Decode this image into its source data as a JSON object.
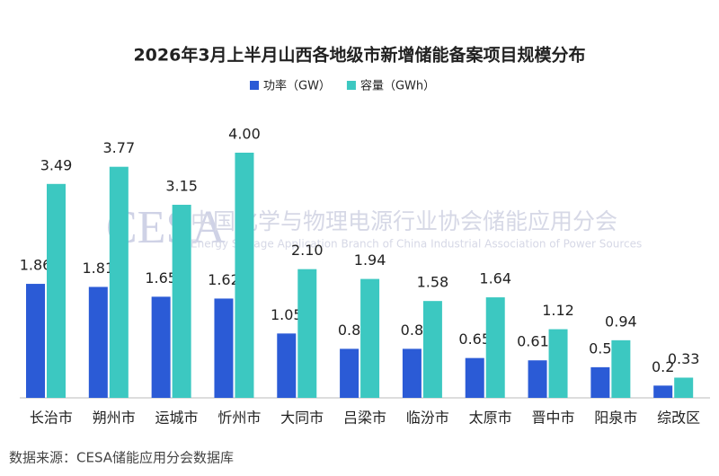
{
  "chart_data": {
    "type": "bar",
    "title": "2026年3月上半月山西各地级市新增储能备案项目规模分布",
    "categories": [
      "长治市",
      "朔州市",
      "运城市",
      "忻州市",
      "大同市",
      "吕梁市",
      "临汾市",
      "太原市",
      "晋中市",
      "阳泉市",
      "综改区"
    ],
    "series": [
      {
        "name": "功率（GW）",
        "color": "#2b5bd6",
        "values": [
          1.86,
          1.81,
          1.65,
          1.62,
          1.05,
          0.8,
          0.8,
          0.65,
          0.612,
          0.5,
          0.2
        ],
        "value_labels": [
          "1.86",
          "1.81",
          "1.65",
          "1.62",
          "1.05",
          "0.8",
          "0.8",
          "0.65",
          "0.612",
          "0.5",
          "0.2"
        ]
      },
      {
        "name": "容量（GWh）",
        "color": "#3cc8c1",
        "values": [
          3.49,
          3.77,
          3.15,
          4.0,
          2.1,
          1.94,
          1.58,
          1.64,
          1.12,
          0.94,
          0.33
        ],
        "value_labels": [
          "3.49",
          "3.77",
          "3.15",
          "4.00",
          "2.10",
          "1.94",
          "1.58",
          "1.64",
          "1.12",
          "0.94",
          "0.33"
        ]
      }
    ],
    "watermark": {
      "logo": "CESA",
      "name": "中国化学与物理电源行业协会储能应用分会",
      "english": "Energy Storage Application Branch of China Industrial Association of Power Sources"
    },
    "source": "数据来源：CESA储能应用分会数据库"
  }
}
